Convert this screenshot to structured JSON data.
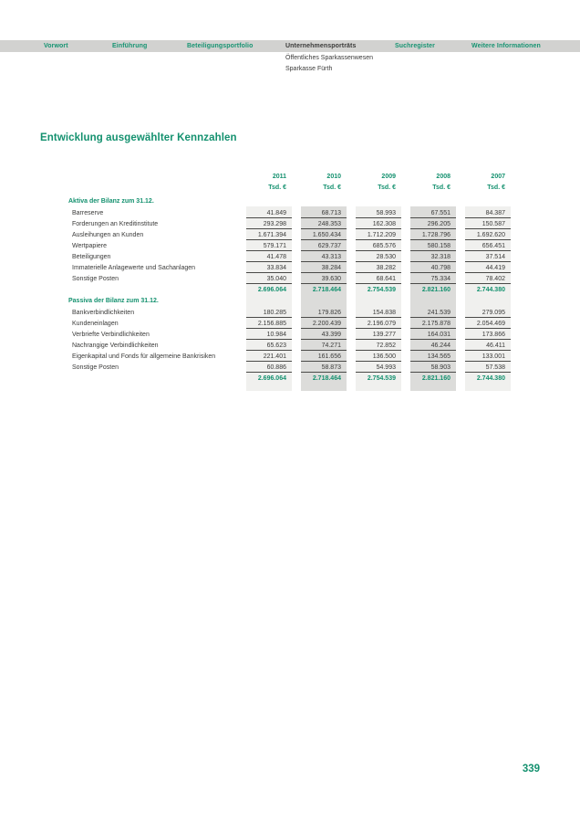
{
  "nav": {
    "items": [
      {
        "label": "Vorwort",
        "active": false
      },
      {
        "label": "Einführung",
        "active": false
      },
      {
        "label": "Beteiligungsportfolio",
        "active": false
      },
      {
        "label": "Unternehmensporträts",
        "active": true
      },
      {
        "label": "Suchregister",
        "active": false
      },
      {
        "label": "Weitere Informationen",
        "active": false
      }
    ],
    "sublines": [
      "Öffentliches Sparkassenwesen",
      "Sparkasse Fürth"
    ]
  },
  "page": {
    "title": "Entwicklung ausgewählter Kennzahlen",
    "number": "339"
  },
  "table": {
    "years": [
      "2011",
      "2010",
      "2009",
      "2008",
      "2007"
    ],
    "unit": "Tsd. €",
    "sections": [
      {
        "header": "Aktiva der Bilanz zum 31.12.",
        "rows": [
          {
            "label": "Barreserve",
            "values": [
              "41.849",
              "68.713",
              "58.993",
              "67.551",
              "84.387"
            ]
          },
          {
            "label": "Forderungen an Kreditinstitute",
            "values": [
              "293.298",
              "248.353",
              "162.308",
              "296.205",
              "150.587"
            ]
          },
          {
            "label": "Ausleihungen an Kunden",
            "values": [
              "1.671.394",
              "1.650.434",
              "1.712.209",
              "1.728.796",
              "1.692.620"
            ]
          },
          {
            "label": "Wertpapiere",
            "values": [
              "579.171",
              "629.737",
              "685.576",
              "580.158",
              "656.451"
            ]
          },
          {
            "label": "Beteiligungen",
            "values": [
              "41.478",
              "43.313",
              "28.530",
              "32.318",
              "37.514"
            ]
          },
          {
            "label": "Immaterielle Anlagewerte und Sachanlagen",
            "values": [
              "33.834",
              "38.284",
              "38.282",
              "40.798",
              "44.419"
            ]
          },
          {
            "label": "Sonstige Posten",
            "values": [
              "35.040",
              "39.630",
              "68.641",
              "75.334",
              "78.402"
            ]
          }
        ],
        "total": [
          "2.696.064",
          "2.718.464",
          "2.754.539",
          "2.821.160",
          "2.744.380"
        ]
      },
      {
        "header": "Passiva der Bilanz zum 31.12.",
        "rows": [
          {
            "label": "Bankverbindlichkeiten",
            "values": [
              "180.285",
              "179.826",
              "154.838",
              "241.539",
              "279.095"
            ]
          },
          {
            "label": "Kundeneinlagen",
            "values": [
              "2.156.885",
              "2.200.439",
              "2.196.079",
              "2.175.878",
              "2.054.469"
            ]
          },
          {
            "label": "Verbriefte Verbindlichkeiten",
            "values": [
              "10.984",
              "43.399",
              "139.277",
              "164.031",
              "173.866"
            ]
          },
          {
            "label": "Nachrangige Verbindlichkeiten",
            "values": [
              "65.623",
              "74.271",
              "72.852",
              "46.244",
              "46.411"
            ]
          },
          {
            "label": "Eigenkapital und Fonds für allgemeine Bankrisiken",
            "values": [
              "221.401",
              "161.656",
              "136.500",
              "134.565",
              "133.001"
            ]
          },
          {
            "label": "Sonstige Posten",
            "values": [
              "60.886",
              "58.873",
              "54.993",
              "58.903",
              "57.538"
            ]
          }
        ],
        "total": [
          "2.696.064",
          "2.718.464",
          "2.754.539",
          "2.821.160",
          "2.744.380"
        ]
      }
    ]
  },
  "colors": {
    "accent_green": "#14916f",
    "nav_band_gray": "#d2d2d0",
    "stripe_light": "#f0f0ee",
    "stripe_dark": "#dcdcda",
    "text_dark": "#3a3a39",
    "row_line": "#4a4a48"
  }
}
